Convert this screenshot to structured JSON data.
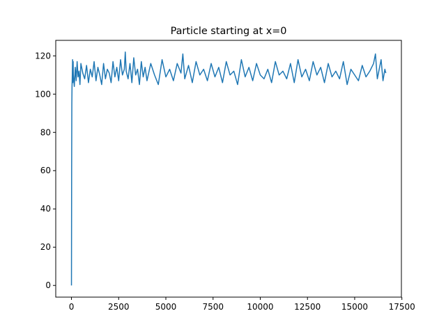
{
  "chart_data": {
    "type": "line",
    "title": "Particle starting at x=0",
    "xlabel": "",
    "ylabel": "",
    "xlim": [
      -832,
      17475
    ],
    "ylim": [
      -6.1,
      128.1
    ],
    "xticks": [
      0,
      2500,
      5000,
      7500,
      10000,
      12500,
      15000,
      17500
    ],
    "xtick_labels": [
      "0",
      "2500",
      "5000",
      "7500",
      "10000",
      "12500",
      "15000",
      "17500"
    ],
    "yticks": [
      0,
      20,
      40,
      60,
      80,
      100,
      120
    ],
    "ytick_labels": [
      "0",
      "20",
      "40",
      "60",
      "80",
      "100",
      "120"
    ],
    "grid": false,
    "line_color": "#1f77b4",
    "series": [
      {
        "name": "",
        "x": [
          0,
          10,
          20,
          30,
          40,
          50,
          60,
          70,
          80,
          90,
          100,
          150,
          200,
          250,
          300,
          350,
          400,
          450,
          500,
          600,
          700,
          800,
          900,
          1000,
          1100,
          1200,
          1300,
          1400,
          1500,
          1600,
          1700,
          1800,
          1900,
          2000,
          2100,
          2200,
          2300,
          2400,
          2500,
          2600,
          2700,
          2800,
          2850,
          2900,
          3000,
          3100,
          3200,
          3300,
          3400,
          3500,
          3600,
          3700,
          3800,
          3900,
          4000,
          4200,
          4400,
          4600,
          4800,
          5000,
          5200,
          5400,
          5600,
          5800,
          5900,
          6000,
          6200,
          6400,
          6600,
          6800,
          7000,
          7200,
          7400,
          7600,
          7800,
          8000,
          8200,
          8400,
          8600,
          8800,
          9000,
          9200,
          9400,
          9600,
          9800,
          10000,
          10200,
          10400,
          10600,
          10800,
          11000,
          11200,
          11400,
          11600,
          11800,
          12000,
          12200,
          12400,
          12600,
          12800,
          13000,
          13200,
          13400,
          13600,
          13800,
          14000,
          14200,
          14400,
          14600,
          14800,
          15000,
          15200,
          15400,
          15600,
          15800,
          16000,
          16100,
          16200,
          16400,
          16500,
          16600,
          16650
        ],
        "y": [
          0,
          60,
          95,
          104,
          108,
          113,
          118,
          106,
          112,
          117,
          110,
          104,
          114,
          107,
          117,
          109,
          112,
          105,
          116,
          111,
          108,
          115,
          106,
          113,
          109,
          117,
          107,
          114,
          110,
          105,
          116,
          108,
          113,
          111,
          106,
          117,
          109,
          114,
          107,
          118,
          110,
          113,
          122,
          112,
          108,
          116,
          106,
          119,
          110,
          113,
          105,
          117,
          109,
          114,
          107,
          116,
          110,
          105,
          118,
          109,
          113,
          107,
          116,
          111,
          121,
          108,
          115,
          106,
          117,
          110,
          113,
          107,
          116,
          109,
          114,
          106,
          117,
          110,
          112,
          105,
          118,
          109,
          114,
          107,
          116,
          110,
          108,
          113,
          106,
          117,
          110,
          112,
          108,
          116,
          106,
          118,
          109,
          113,
          107,
          117,
          110,
          114,
          106,
          116,
          109,
          112,
          108,
          117,
          105,
          113,
          110,
          107,
          115,
          109,
          112,
          116,
          121,
          108,
          118,
          107,
          113,
          111
        ]
      }
    ]
  }
}
